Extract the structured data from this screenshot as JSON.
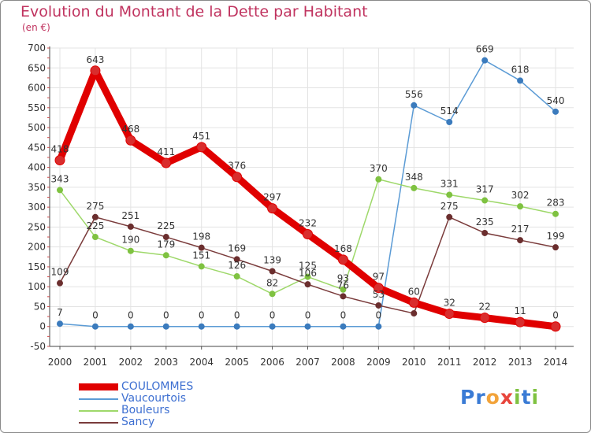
{
  "title": "Evolution du Montant de la Dette par Habitant",
  "subtitle": "(en €)",
  "logo": {
    "letters": [
      "P",
      "r",
      "o",
      "x",
      "i",
      "t",
      "i"
    ],
    "colors": [
      "#3a7bd5",
      "#3a7bd5",
      "#f2a33a",
      "#e8453c",
      "#7fc241",
      "#3a7bd5",
      "#7fc241"
    ]
  },
  "chart_data": {
    "type": "line",
    "categories": [
      "2000",
      "2001",
      "2002",
      "2003",
      "2004",
      "2005",
      "2006",
      "2007",
      "2008",
      "2009",
      "2010",
      "2011",
      "2012",
      "2013",
      "2014"
    ],
    "ylim": [
      -50,
      700
    ],
    "yticks": [
      -50,
      0,
      50,
      100,
      150,
      200,
      250,
      300,
      350,
      400,
      450,
      500,
      550,
      600,
      650,
      700
    ],
    "grid": true,
    "series": [
      {
        "name": "COULOMMES",
        "color": "#e00000",
        "marker": "#d92d2d",
        "width": 9,
        "values": [
          418,
          643,
          468,
          411,
          451,
          376,
          297,
          232,
          168,
          97,
          60,
          32,
          22,
          11,
          0
        ],
        "labels": [
          "418",
          "643",
          "468",
          "411",
          "451",
          "376",
          "297",
          "232",
          "168",
          "97",
          "60",
          "32",
          "22",
          "11",
          "0"
        ]
      },
      {
        "name": "Vaucourtois",
        "color": "#5b9bd5",
        "marker": "#3b7bbd",
        "width": 1.5,
        "values": [
          7,
          0,
          0,
          0,
          0,
          0,
          0,
          0,
          0,
          0,
          556,
          514,
          669,
          618,
          540
        ],
        "labels": [
          "7",
          "0",
          "0",
          "0",
          "0",
          "0",
          "0",
          "0",
          "0",
          "0",
          "556",
          "514",
          "669",
          "618",
          "540"
        ]
      },
      {
        "name": "Bouleurs",
        "color": "#9ed86a",
        "marker": "#7fc241",
        "width": 1.5,
        "values": [
          343,
          225,
          190,
          179,
          151,
          126,
          82,
          125,
          93,
          370,
          348,
          331,
          317,
          302,
          283
        ],
        "labels": [
          "343",
          "225",
          "190",
          "179",
          "151",
          "126",
          "82",
          "125",
          "93",
          "370",
          "348",
          "331",
          "317",
          "302",
          "283"
        ]
      },
      {
        "name": "Sancy",
        "color": "#7a3b3b",
        "marker": "#6b2e2e",
        "width": 1.5,
        "values": [
          109,
          275,
          251,
          225,
          198,
          169,
          139,
          106,
          76,
          53,
          33,
          275,
          235,
          217,
          199
        ],
        "labels": [
          "109",
          "275",
          "251",
          "225",
          "198",
          "169",
          "139",
          "106",
          "76",
          "53",
          "",
          "275",
          "235",
          "217",
          "199"
        ]
      }
    ]
  }
}
